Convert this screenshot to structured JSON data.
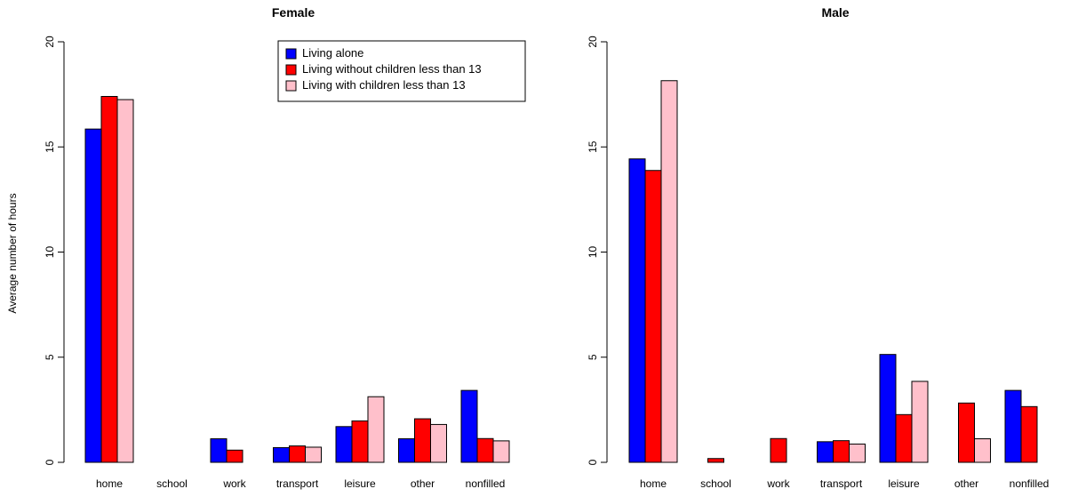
{
  "chart_data": [
    {
      "type": "bar",
      "title": "Female",
      "ylabel": "Average number of hours",
      "xlabel": "",
      "ylim": [
        0,
        20
      ],
      "yticks": [
        0,
        5,
        10,
        15,
        20
      ],
      "categories": [
        "home",
        "school",
        "work",
        "transport",
        "leisure",
        "other",
        "nonfilled"
      ],
      "series": [
        {
          "name": "Living alone",
          "color": "#0000ff",
          "values": [
            15.85,
            0,
            1.12,
            0.7,
            1.7,
            1.12,
            3.42
          ]
        },
        {
          "name": "Living without children less than 13",
          "color": "#ff0000",
          "values": [
            17.4,
            0,
            0.58,
            0.78,
            1.97,
            2.07,
            1.13
          ]
        },
        {
          "name": "Living with children less than 13",
          "color": "#ffc0cb",
          "values": [
            17.25,
            0,
            0,
            0.72,
            3.12,
            1.8,
            1.02
          ]
        }
      ],
      "legend": "top-right",
      "grid": false
    },
    {
      "type": "bar",
      "title": "Male",
      "ylabel": "",
      "xlabel": "",
      "ylim": [
        0,
        20
      ],
      "yticks": [
        0,
        5,
        10,
        15,
        20
      ],
      "categories": [
        "home",
        "school",
        "work",
        "transport",
        "leisure",
        "other",
        "nonfilled"
      ],
      "series": [
        {
          "name": "Living alone",
          "color": "#0000ff",
          "values": [
            14.43,
            0,
            0,
            0.98,
            5.13,
            0,
            3.42
          ]
        },
        {
          "name": "Living without children less than 13",
          "color": "#ff0000",
          "values": [
            13.88,
            0.18,
            1.13,
            1.03,
            2.27,
            2.82,
            2.65
          ]
        },
        {
          "name": "Living with children less than 13",
          "color": "#ffc0cb",
          "values": [
            18.15,
            0,
            0,
            0.87,
            3.85,
            1.12,
            0
          ]
        }
      ],
      "grid": false
    }
  ]
}
